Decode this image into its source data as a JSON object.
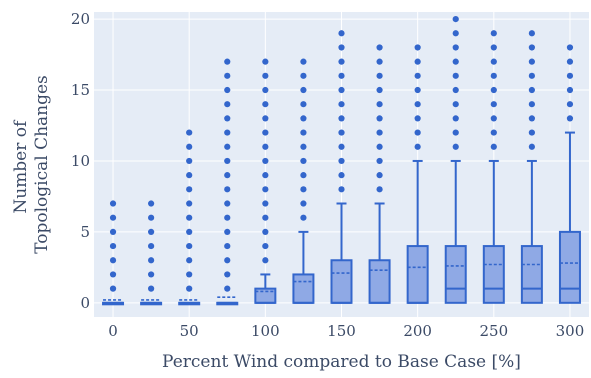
{
  "chart_data": {
    "type": "box",
    "xlabel": "Percent Wind compared to Base Case [%]",
    "ylabel_lines": [
      "Number of",
      "Topological Changes"
    ],
    "x_ticks": [
      "0",
      "50",
      "100",
      "150",
      "200",
      "250",
      "300"
    ],
    "y_ticks": [
      "0",
      "5",
      "10",
      "15",
      "20"
    ],
    "xlim": [
      -12.5,
      312.5
    ],
    "ylim": [
      -1,
      20.5
    ],
    "grid": true,
    "colors": {
      "plot_bg": "#e5ecf6",
      "grid": "#ffffff",
      "box_fill": "#8fa9e5",
      "box_line": "#3366cc"
    },
    "boxes": [
      {
        "x": 0,
        "q1": 0,
        "median": 0,
        "q3": 0,
        "lower": 0,
        "upper": 0,
        "mean": 0.2,
        "outliers": [
          1,
          2,
          3,
          4,
          5,
          6,
          7
        ]
      },
      {
        "x": 25,
        "q1": 0,
        "median": 0,
        "q3": 0,
        "lower": 0,
        "upper": 0,
        "mean": 0.2,
        "outliers": [
          1,
          2,
          3,
          4,
          5,
          6,
          7
        ]
      },
      {
        "x": 50,
        "q1": 0,
        "median": 0,
        "q3": 0,
        "lower": 0,
        "upper": 0,
        "mean": 0.2,
        "outliers": [
          1,
          2,
          3,
          4,
          5,
          6,
          7,
          8,
          9,
          10,
          11,
          12
        ]
      },
      {
        "x": 75,
        "q1": 0,
        "median": 0,
        "q3": 0,
        "lower": 0,
        "upper": 0,
        "mean": 0.4,
        "outliers": [
          1,
          2,
          3,
          4,
          5,
          6,
          7,
          8,
          9,
          10,
          11,
          12,
          13,
          14,
          15,
          16,
          17
        ]
      },
      {
        "x": 100,
        "q1": 0,
        "median": 0,
        "q3": 1,
        "lower": 0,
        "upper": 2,
        "mean": 0.8,
        "outliers": [
          3,
          4,
          5,
          6,
          7,
          8,
          9,
          10,
          11,
          12,
          13,
          14,
          15,
          16,
          17
        ]
      },
      {
        "x": 125,
        "q1": 0,
        "median": 0,
        "q3": 2,
        "lower": 0,
        "upper": 5,
        "mean": 1.5,
        "outliers": [
          6,
          7,
          8,
          9,
          10,
          11,
          12,
          13,
          14,
          15,
          16,
          17
        ]
      },
      {
        "x": 150,
        "q1": 0,
        "median": 0,
        "q3": 3,
        "lower": 0,
        "upper": 7,
        "mean": 2.1,
        "outliers": [
          8,
          9,
          10,
          11,
          12,
          13,
          14,
          15,
          16,
          17,
          18,
          19
        ]
      },
      {
        "x": 175,
        "q1": 0,
        "median": 0,
        "q3": 3,
        "lower": 0,
        "upper": 7,
        "mean": 2.3,
        "outliers": [
          8,
          9,
          10,
          11,
          12,
          13,
          14,
          15,
          16,
          17,
          18
        ]
      },
      {
        "x": 200,
        "q1": 0,
        "median": 0,
        "q3": 4,
        "lower": 0,
        "upper": 10,
        "mean": 2.5,
        "outliers": [
          11,
          12,
          13,
          14,
          15,
          16,
          17,
          18
        ]
      },
      {
        "x": 225,
        "q1": 0,
        "median": 1,
        "q3": 4,
        "lower": 0,
        "upper": 10,
        "mean": 2.6,
        "outliers": [
          11,
          12,
          13,
          14,
          15,
          16,
          17,
          18,
          19,
          20
        ]
      },
      {
        "x": 250,
        "q1": 0,
        "median": 1,
        "q3": 4,
        "lower": 0,
        "upper": 10,
        "mean": 2.7,
        "outliers": [
          11,
          12,
          13,
          14,
          15,
          16,
          17,
          18,
          19
        ]
      },
      {
        "x": 275,
        "q1": 0,
        "median": 1,
        "q3": 4,
        "lower": 0,
        "upper": 10,
        "mean": 2.7,
        "outliers": [
          11,
          12,
          13,
          14,
          15,
          16,
          17,
          18,
          19
        ]
      },
      {
        "x": 300,
        "q1": 0,
        "median": 1,
        "q3": 5,
        "lower": 0,
        "upper": 12,
        "mean": 2.8,
        "outliers": [
          13,
          14,
          15,
          16,
          17,
          18
        ]
      }
    ]
  }
}
